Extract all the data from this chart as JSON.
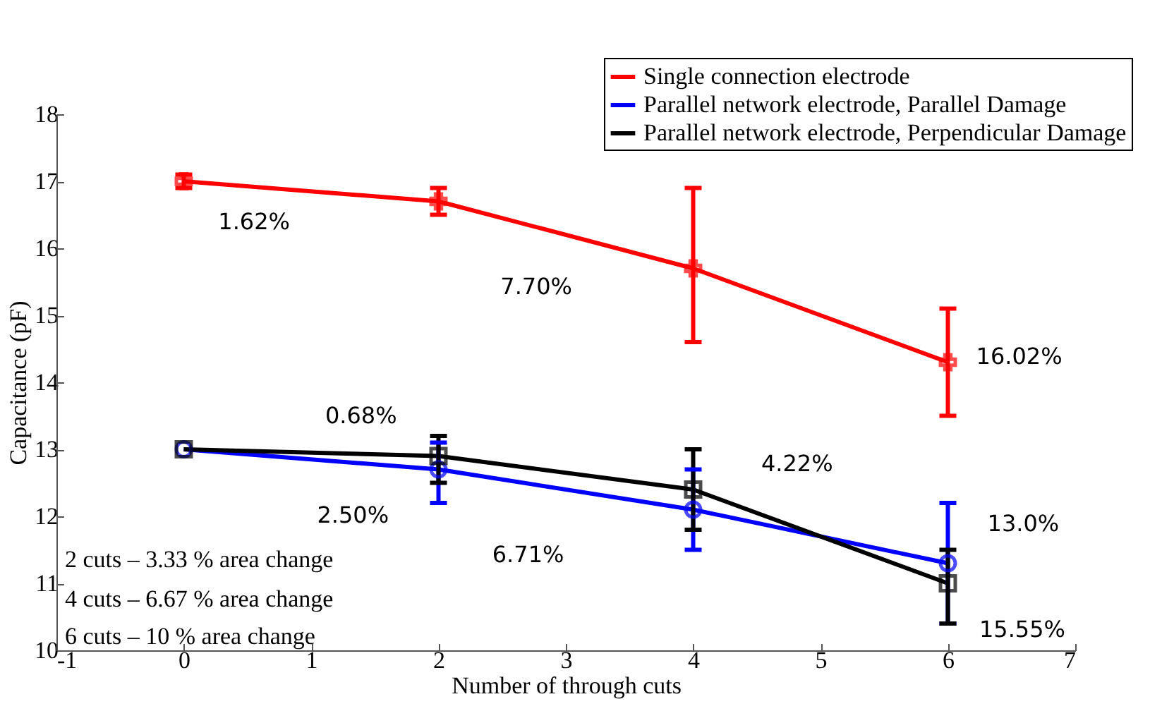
{
  "chart_data": {
    "type": "line",
    "xlabel": "Number of through cuts",
    "ylabel": "Capacitance (pF)",
    "x": [
      0,
      2,
      4,
      6
    ],
    "xlim": [
      -1,
      7
    ],
    "xticks": [
      -1,
      0,
      1,
      2,
      3,
      4,
      5,
      6,
      7
    ],
    "ylim": [
      10,
      18
    ],
    "yticks": [
      10,
      11,
      12,
      13,
      14,
      15,
      16,
      17,
      18
    ],
    "grid": false,
    "legend": "top right",
    "line_style": "solid",
    "series": [
      {
        "name": "Single connection electrode",
        "color": "#ff0000",
        "marker": "cross",
        "values": [
          17.0,
          16.7,
          15.7,
          14.3
        ],
        "errors": [
          0.1,
          [
            16.5,
            16.9
          ],
          [
            14.6,
            16.9
          ],
          [
            13.5,
            15.1
          ]
        ]
      },
      {
        "name": "Parallel network electrode, Parallel Damage",
        "color": "#0000ff",
        "marker": "circle",
        "values": [
          13.0,
          12.7,
          12.1,
          11.3
        ],
        "errors": [
          null,
          [
            12.2,
            13.1
          ],
          [
            11.5,
            12.7
          ],
          [
            10.4,
            12.2
          ]
        ]
      },
      {
        "name": "Parallel network electrode, Perpendicular Damage",
        "color": "#000000",
        "marker": "square",
        "values": [
          13.0,
          12.9,
          12.4,
          11.0
        ],
        "errors": [
          null,
          [
            12.5,
            13.2
          ],
          [
            11.8,
            13.0
          ],
          [
            10.4,
            11.5
          ]
        ]
      }
    ],
    "annotations": [
      "1.62%",
      "7.70%",
      "16.02%",
      "0.68%",
      "2.50%",
      "4.22%",
      "6.71%",
      "13.0%",
      "15.55%",
      "2 cuts – 3.33 % area change",
      "4 cuts – 6.67 % area change",
      "6 cuts – 10 % area change"
    ]
  }
}
